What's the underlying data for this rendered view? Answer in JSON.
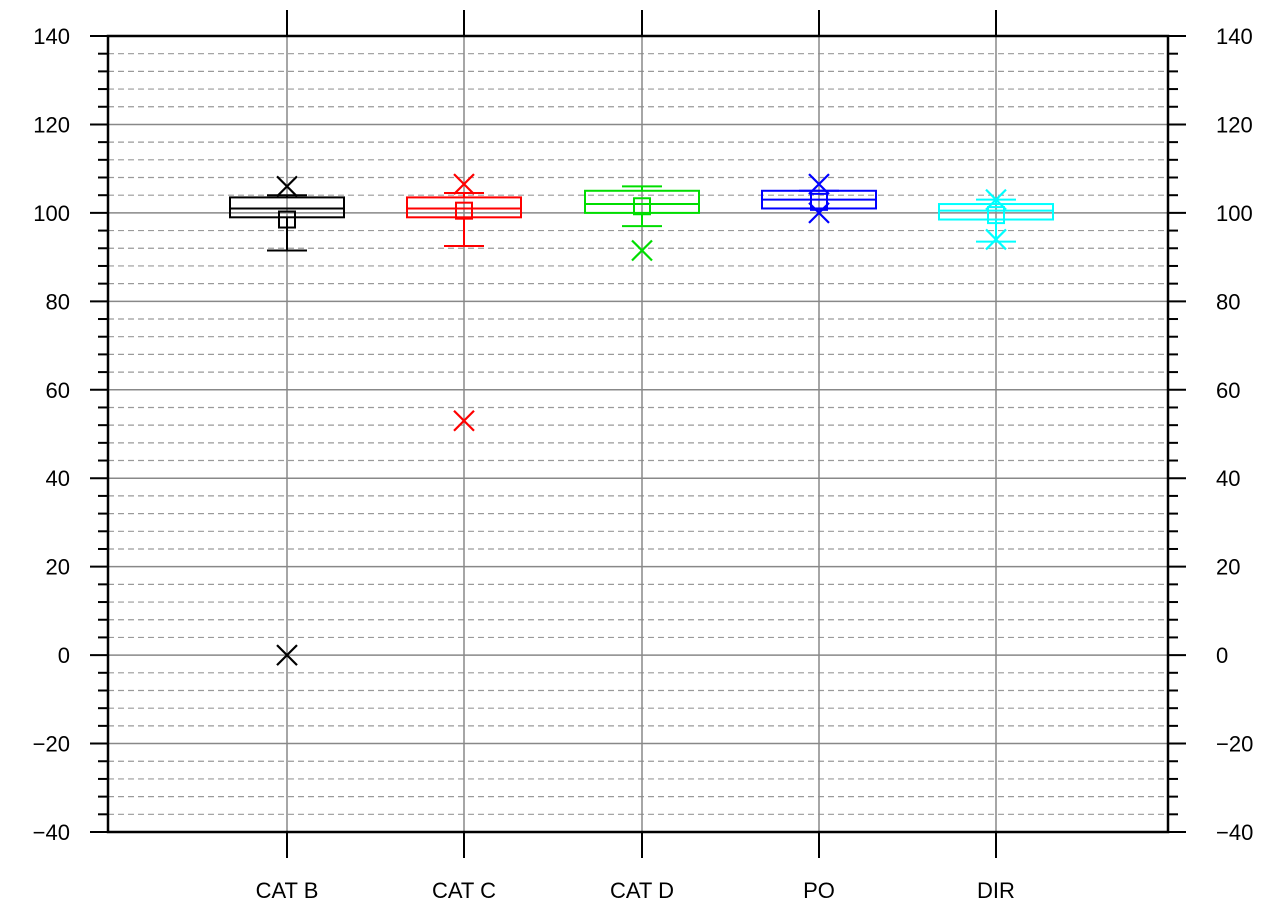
{
  "chart_data": {
    "type": "box",
    "title": "",
    "xlabel": "",
    "ylabel": "",
    "ylim": [
      -40,
      140
    ],
    "y_ticks": [
      -40,
      -20,
      0,
      20,
      40,
      60,
      80,
      100,
      120,
      140
    ],
    "y_tick_labels": [
      "−40",
      "−20",
      "0",
      "20",
      "40",
      "60",
      "80",
      "100",
      "120",
      "140"
    ],
    "right_axis_mirrors_left": true,
    "grid": {
      "horizontal_minor": "dashed",
      "horizontal_major": "solid",
      "vertical": "solid"
    },
    "categories": [
      "CAT B",
      "CAT C",
      "CAT D",
      "PO",
      "DIR"
    ],
    "boxes": [
      {
        "category": "CAT B",
        "color": "#000000",
        "whisker_low": 91.5,
        "q1": 99,
        "median": 101,
        "q3": 103.5,
        "whisker_high": 104,
        "mean": 98.5,
        "outliers": [
          106,
          0
        ]
      },
      {
        "category": "CAT C",
        "color": "#ff0000",
        "whisker_low": 92.5,
        "q1": 99,
        "median": 101,
        "q3": 103.5,
        "whisker_high": 104.5,
        "mean": 100.5,
        "outliers": [
          106.5,
          53
        ]
      },
      {
        "category": "CAT D",
        "color": "#00dd00",
        "whisker_low": 97,
        "q1": 100,
        "median": 102,
        "q3": 105,
        "whisker_high": 106,
        "mean": 101.5,
        "outliers": [
          91.5
        ]
      },
      {
        "category": "PO",
        "color": "#0000ff",
        "whisker_low": 101,
        "q1": 101,
        "median": 103,
        "q3": 105,
        "whisker_high": 105,
        "mean": 102.5,
        "outliers": [
          106.5,
          100
        ]
      },
      {
        "category": "DIR",
        "color": "#00ffff",
        "whisker_low": 93.5,
        "q1": 98.5,
        "median": 100.5,
        "q3": 102,
        "whisker_high": 103,
        "mean": 99.5,
        "outliers": [
          103,
          94
        ]
      }
    ]
  }
}
